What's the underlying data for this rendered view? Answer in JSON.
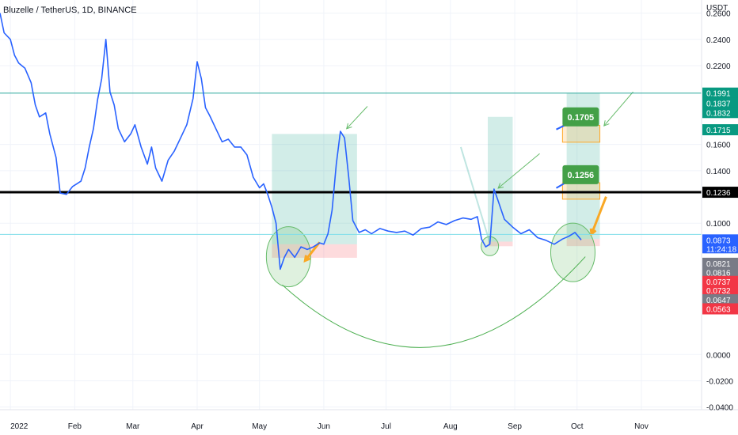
{
  "chart_data": {
    "type": "line",
    "title": "Bluzelle / TetherUS, 1D, BINANCE",
    "currency": "USDT",
    "x_ticks": [
      {
        "date": "2022-01-01",
        "label": "2022"
      },
      {
        "date": "2022-02-01",
        "label": "Feb"
      },
      {
        "date": "2022-03-01",
        "label": "Mar"
      },
      {
        "date": "2022-04-01",
        "label": "Apr"
      },
      {
        "date": "2022-05-01",
        "label": "May"
      },
      {
        "date": "2022-06-01",
        "label": "Jun"
      },
      {
        "date": "2022-07-01",
        "label": "Jul"
      },
      {
        "date": "2022-08-01",
        "label": "Aug"
      },
      {
        "date": "2022-09-01",
        "label": "Sep"
      },
      {
        "date": "2022-10-01",
        "label": "Oct"
      },
      {
        "date": "2022-11-01",
        "label": "Nov"
      }
    ],
    "y_ticks": [
      {
        "value": 0.26,
        "label": "0.2600"
      },
      {
        "value": 0.24,
        "label": "0.2400"
      },
      {
        "value": 0.22,
        "label": "0.2200"
      },
      {
        "value": 0.16,
        "label": "0.1600"
      },
      {
        "value": 0.14,
        "label": "0.1400"
      },
      {
        "value": 0.1,
        "label": "0.1000"
      },
      {
        "value": 0.0,
        "label": "0.0000"
      },
      {
        "value": -0.02,
        "label": "-0.0200"
      },
      {
        "value": -0.04,
        "label": "-0.0400"
      }
    ],
    "ylim": [
      -0.042,
      0.27
    ],
    "xlim": [
      "2021-12-27",
      "2022-11-30"
    ],
    "grid": true,
    "series": [
      {
        "color": "#2962ff",
        "points": [
          [
            "2021-12-27",
            0.26
          ],
          [
            "2021-12-29",
            0.245
          ],
          [
            "2022-01-01",
            0.24
          ],
          [
            "2022-01-03",
            0.228
          ],
          [
            "2022-01-05",
            0.222
          ],
          [
            "2022-01-08",
            0.218
          ],
          [
            "2022-01-11",
            0.207
          ],
          [
            "2022-01-13",
            0.19
          ],
          [
            "2022-01-15",
            0.181
          ],
          [
            "2022-01-18",
            0.184
          ],
          [
            "2022-01-20",
            0.168
          ],
          [
            "2022-01-23",
            0.15
          ],
          [
            "2022-01-25",
            0.123
          ],
          [
            "2022-01-28",
            0.122
          ],
          [
            "2022-01-31",
            0.128
          ],
          [
            "2022-02-02",
            0.13
          ],
          [
            "2022-02-04",
            0.132
          ],
          [
            "2022-02-06",
            0.142
          ],
          [
            "2022-02-08",
            0.158
          ],
          [
            "2022-02-10",
            0.172
          ],
          [
            "2022-02-12",
            0.194
          ],
          [
            "2022-02-14",
            0.21
          ],
          [
            "2022-02-16",
            0.24
          ],
          [
            "2022-02-18",
            0.2
          ],
          [
            "2022-02-20",
            0.19
          ],
          [
            "2022-02-22",
            0.172
          ],
          [
            "2022-02-25",
            0.162
          ],
          [
            "2022-02-28",
            0.168
          ],
          [
            "2022-03-02",
            0.175
          ],
          [
            "2022-03-05",
            0.158
          ],
          [
            "2022-03-08",
            0.145
          ],
          [
            "2022-03-10",
            0.158
          ],
          [
            "2022-03-12",
            0.142
          ],
          [
            "2022-03-15",
            0.132
          ],
          [
            "2022-03-18",
            0.148
          ],
          [
            "2022-03-21",
            0.155
          ],
          [
            "2022-03-24",
            0.165
          ],
          [
            "2022-03-27",
            0.175
          ],
          [
            "2022-03-30",
            0.195
          ],
          [
            "2022-04-01",
            0.223
          ],
          [
            "2022-04-03",
            0.21
          ],
          [
            "2022-04-05",
            0.188
          ],
          [
            "2022-04-07",
            0.182
          ],
          [
            "2022-04-10",
            0.172
          ],
          [
            "2022-04-13",
            0.162
          ],
          [
            "2022-04-16",
            0.164
          ],
          [
            "2022-04-19",
            0.158
          ],
          [
            "2022-04-22",
            0.158
          ],
          [
            "2022-04-25",
            0.152
          ],
          [
            "2022-04-28",
            0.135
          ],
          [
            "2022-05-01",
            0.127
          ],
          [
            "2022-05-03",
            0.13
          ],
          [
            "2022-05-05",
            0.122
          ],
          [
            "2022-05-07",
            0.112
          ],
          [
            "2022-05-09",
            0.1
          ],
          [
            "2022-05-11",
            0.065
          ],
          [
            "2022-05-13",
            0.074
          ],
          [
            "2022-05-15",
            0.08
          ],
          [
            "2022-05-18",
            0.074
          ],
          [
            "2022-05-21",
            0.082
          ],
          [
            "2022-05-24",
            0.08
          ],
          [
            "2022-05-27",
            0.082
          ],
          [
            "2022-05-30",
            0.085
          ],
          [
            "2022-06-01",
            0.084
          ],
          [
            "2022-06-03",
            0.092
          ],
          [
            "2022-06-05",
            0.11
          ],
          [
            "2022-06-07",
            0.145
          ],
          [
            "2022-06-09",
            0.17
          ],
          [
            "2022-06-11",
            0.165
          ],
          [
            "2022-06-13",
            0.135
          ],
          [
            "2022-06-15",
            0.102
          ],
          [
            "2022-06-18",
            0.093
          ],
          [
            "2022-06-21",
            0.095
          ],
          [
            "2022-06-24",
            0.092
          ],
          [
            "2022-06-28",
            0.096
          ],
          [
            "2022-07-02",
            0.094
          ],
          [
            "2022-07-06",
            0.093
          ],
          [
            "2022-07-10",
            0.094
          ],
          [
            "2022-07-14",
            0.091
          ],
          [
            "2022-07-18",
            0.096
          ],
          [
            "2022-07-22",
            0.097
          ],
          [
            "2022-07-26",
            0.101
          ],
          [
            "2022-07-30",
            0.099
          ],
          [
            "2022-08-03",
            0.102
          ],
          [
            "2022-08-07",
            0.104
          ],
          [
            "2022-08-11",
            0.103
          ],
          [
            "2022-08-14",
            0.105
          ],
          [
            "2022-08-16",
            0.088
          ],
          [
            "2022-08-18",
            0.082
          ],
          [
            "2022-08-20",
            0.084
          ],
          [
            "2022-08-22",
            0.126
          ],
          [
            "2022-08-24",
            0.117
          ],
          [
            "2022-08-27",
            0.103
          ],
          [
            "2022-08-31",
            0.097
          ],
          [
            "2022-09-04",
            0.092
          ],
          [
            "2022-09-08",
            0.095
          ],
          [
            "2022-09-12",
            0.089
          ],
          [
            "2022-09-16",
            0.087
          ],
          [
            "2022-09-20",
            0.084
          ],
          [
            "2022-09-24",
            0.088
          ],
          [
            "2022-09-27",
            0.09
          ],
          [
            "2022-09-30",
            0.093
          ],
          [
            "2022-10-03",
            0.0873
          ]
        ]
      }
    ],
    "horizontal_lines": [
      {
        "value": 0.1991,
        "color": "#26a69a",
        "width": 1
      },
      {
        "value": 0.1236,
        "color": "#000000",
        "width": 3
      },
      {
        "value": 0.0915,
        "color": "#80deea",
        "width": 1
      }
    ],
    "price_labels": [
      {
        "value": 0.1991,
        "label": "0.1991",
        "color": "#089981"
      },
      {
        "value": 0.1914,
        "label": "0.1837",
        "color": "#089981"
      },
      {
        "value": 0.1843,
        "label": "0.1832",
        "color": "#089981"
      },
      {
        "value": 0.1712,
        "label": "0.1715",
        "color": "#089981"
      },
      {
        "value": 0.1236,
        "label": "0.1236",
        "color": "#000000"
      },
      {
        "value": 0.0873,
        "label": "0.0873",
        "sublabel": "11:24:18",
        "color": "#2962ff"
      },
      {
        "value": 0.0695,
        "label": "0.0821",
        "color": "#787b86"
      },
      {
        "value": 0.0626,
        "label": "0.0816",
        "color": "#787b86"
      },
      {
        "value": 0.0557,
        "label": "0.0737",
        "color": "#f23645"
      },
      {
        "value": 0.0488,
        "label": "0.0732",
        "color": "#f23645"
      },
      {
        "value": 0.0417,
        "label": "0.0647",
        "color": "#787b86"
      },
      {
        "value": 0.0348,
        "label": "0.0563",
        "color": "#f23645"
      }
    ],
    "annotations": [
      {
        "text": "0.1705",
        "color": "#43a047"
      },
      {
        "text": "0.1256",
        "color": "#43a047"
      }
    ]
  }
}
